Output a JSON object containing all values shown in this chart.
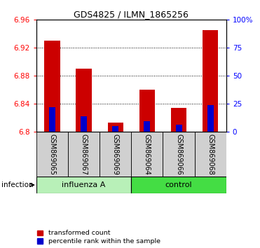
{
  "title": "GDS4825 / ILMN_1865256",
  "samples": [
    "GSM869065",
    "GSM869067",
    "GSM869069",
    "GSM869064",
    "GSM869066",
    "GSM869068"
  ],
  "group_labels": [
    "influenza A",
    "control"
  ],
  "red_values": [
    6.93,
    6.89,
    6.813,
    6.86,
    6.834,
    6.945
  ],
  "blue_values": [
    6.835,
    6.822,
    6.808,
    6.815,
    6.81,
    6.838
  ],
  "ymin": 6.8,
  "ymax": 6.96,
  "yticks": [
    6.8,
    6.84,
    6.88,
    6.92,
    6.96
  ],
  "right_yticks": [
    0,
    25,
    50,
    75,
    100
  ],
  "right_yticklabels": [
    "0",
    "25",
    "50",
    "75",
    "100%"
  ],
  "bar_width": 0.5,
  "blue_bar_width": 0.2,
  "red_color": "#CC0000",
  "blue_color": "#0000CC",
  "infection_label": "infection",
  "legend_red": "transformed count",
  "legend_blue": "percentile rank within the sample",
  "background_color": "#ffffff",
  "group_box_light": "#b8f0b8",
  "group_box_dark": "#44dd44",
  "sample_box_color": "#d0d0d0",
  "title_fontsize": 9,
  "tick_fontsize": 7.5,
  "label_fontsize": 7,
  "group_fontsize": 8
}
